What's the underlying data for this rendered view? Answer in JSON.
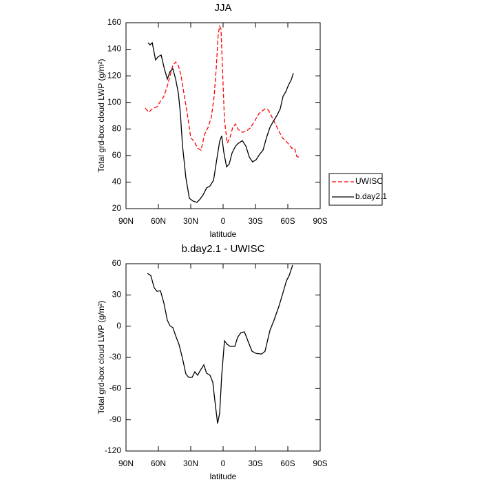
{
  "chart_data": [
    {
      "type": "line",
      "title": "JJA",
      "x_label": "latitude",
      "y_label": "Total grd-box cloud LWP (g/m²)",
      "xlim": [
        90,
        -90
      ],
      "xticks": [
        {
          "value": 90,
          "label": "90N"
        },
        {
          "value": 60,
          "label": "60N"
        },
        {
          "value": 30,
          "label": "30N"
        },
        {
          "value": 0,
          "label": "0"
        },
        {
          "value": -30,
          "label": "30S"
        },
        {
          "value": -60,
          "label": "60S"
        },
        {
          "value": -90,
          "label": "90S"
        }
      ],
      "ylim": [
        20,
        160
      ],
      "yticks": [
        20,
        40,
        60,
        80,
        100,
        120,
        140,
        160
      ],
      "legend": "right",
      "series": [
        {
          "name": "UWISC",
          "color": "#ff0000",
          "dash": true,
          "x": [
            72.1,
            68.9,
            65.7,
            61.3,
            58.1,
            54.9,
            51.7,
            49.2,
            46.6,
            44.0,
            41.5,
            38.9,
            36.4,
            33.2,
            30.0,
            26.8,
            23.6,
            20.4,
            17.2,
            14.0,
            10.9,
            8.3,
            6.4,
            4.5,
            3.2,
            1.9,
            0.6,
            -1.3,
            -3.8,
            -6.4,
            -8.9,
            -11.5,
            -14.0,
            -17.9,
            -21.7,
            -25.5,
            -29.4,
            -33.2,
            -38.9,
            -42.1,
            -45.3,
            -48.5,
            -51.7,
            -54.9,
            -60.0,
            -63.8,
            -66.4,
            -68.3,
            -70.2
          ],
          "values": [
            95.7,
            92.6,
            95.2,
            96.7,
            100.9,
            104.5,
            112.3,
            120.0,
            127.8,
            130.4,
            127.8,
            120.0,
            107.1,
            91.5,
            73.3,
            70.7,
            65.5,
            64.0,
            75.9,
            81.1,
            88.9,
            104.5,
            125.3,
            151.2,
            157.4,
            155.3,
            125.3,
            86.4,
            69.3,
            73.4,
            81.1,
            83.7,
            79.6,
            77.5,
            78.5,
            81.1,
            86.2,
            91.5,
            95.2,
            94.1,
            88.9,
            83.7,
            78.5,
            73.4,
            69.3,
            65.5,
            65.5,
            59.3,
            58.8
          ]
        },
        {
          "name": "b.day2.1",
          "color": "#000000",
          "dash": false,
          "x": [
            69.6,
            67.7,
            65.7,
            62.6,
            60.0,
            57.4,
            54.9,
            51.7,
            49.2,
            46.6,
            44.0,
            41.5,
            39.6,
            37.7,
            34.5,
            31.3,
            28.1,
            24.3,
            21.7,
            18.5,
            15.3,
            12.1,
            8.9,
            5.7,
            3.2,
            1.3,
            -0.6,
            -3.2,
            -5.7,
            -8.3,
            -11.5,
            -14.0,
            -17.9,
            -21.1,
            -24.3,
            -27.4,
            -30.6,
            -33.8,
            -37.0,
            -40.2,
            -43.4,
            -46.6,
            -49.8,
            -53.0,
            -55.5,
            -58.1,
            -60.6,
            -63.2,
            -65.1
          ],
          "values": [
            144.9,
            143.3,
            144.9,
            132.0,
            134.6,
            135.6,
            126.8,
            117.5,
            123.2,
            125.3,
            117.5,
            107.1,
            91.5,
            68.2,
            43.4,
            27.8,
            25.8,
            24.7,
            26.8,
            30.4,
            35.6,
            37.1,
            41.3,
            57.9,
            70.7,
            74.8,
            62.9,
            51.5,
            53.6,
            61.9,
            67.1,
            69.1,
            71.2,
            67.1,
            58.8,
            55.2,
            56.8,
            60.9,
            64.0,
            73.4,
            81.1,
            85.8,
            90.0,
            95.2,
            104.5,
            108.0,
            113.0,
            117.0,
            122.0
          ]
        }
      ]
    },
    {
      "type": "line",
      "title": "b.day2.1 - UWISC",
      "x_label": "latitude",
      "y_label": "Total grd-box cloud LWP (g/m²)",
      "xlim": [
        90,
        -90
      ],
      "xticks": [
        {
          "value": 90,
          "label": "90N"
        },
        {
          "value": 60,
          "label": "60N"
        },
        {
          "value": 30,
          "label": "30N"
        },
        {
          "value": 0,
          "label": "0"
        },
        {
          "value": -30,
          "label": "30S"
        },
        {
          "value": -60,
          "label": "60S"
        },
        {
          "value": -90,
          "label": "90S"
        }
      ],
      "ylim": [
        -120,
        60
      ],
      "yticks": [
        -120,
        -90,
        -60,
        -30,
        0,
        30,
        60
      ],
      "series": [
        {
          "color": "#000000",
          "dash": false,
          "x": [
            70.2,
            67.0,
            63.8,
            61.3,
            58.1,
            54.9,
            51.7,
            49.2,
            46.6,
            43.4,
            40.9,
            37.7,
            34.5,
            31.9,
            28.7,
            26.2,
            23.6,
            21.1,
            17.9,
            15.3,
            12.1,
            9.6,
            7.0,
            5.1,
            3.2,
            1.3,
            -1.3,
            -3.8,
            -6.4,
            -10.9,
            -13.4,
            -16.6,
            -19.8,
            -23.0,
            -26.8,
            -30.6,
            -35.7,
            -38.9,
            -43.4,
            -47.2,
            -51.7,
            -55.5,
            -58.7,
            -61.3,
            -64.5
          ],
          "values": [
            50.7,
            48.7,
            36.8,
            33.4,
            34.1,
            22.2,
            5.7,
            0.4,
            -1.5,
            -10.8,
            -17.4,
            -30.6,
            -45.9,
            -49.2,
            -49.2,
            -43.9,
            -47.2,
            -42.5,
            -37.2,
            -45.2,
            -47.2,
            -53.8,
            -77.0,
            -93.5,
            -83.6,
            -47.2,
            -14.1,
            -17.4,
            -19.4,
            -19.4,
            -10.8,
            -6.2,
            -5.5,
            -14.1,
            -24.1,
            -26.2,
            -26.8,
            -24.1,
            -4.2,
            5.7,
            19.0,
            32.2,
            43.5,
            48.7,
            58.7
          ]
        }
      ]
    }
  ]
}
